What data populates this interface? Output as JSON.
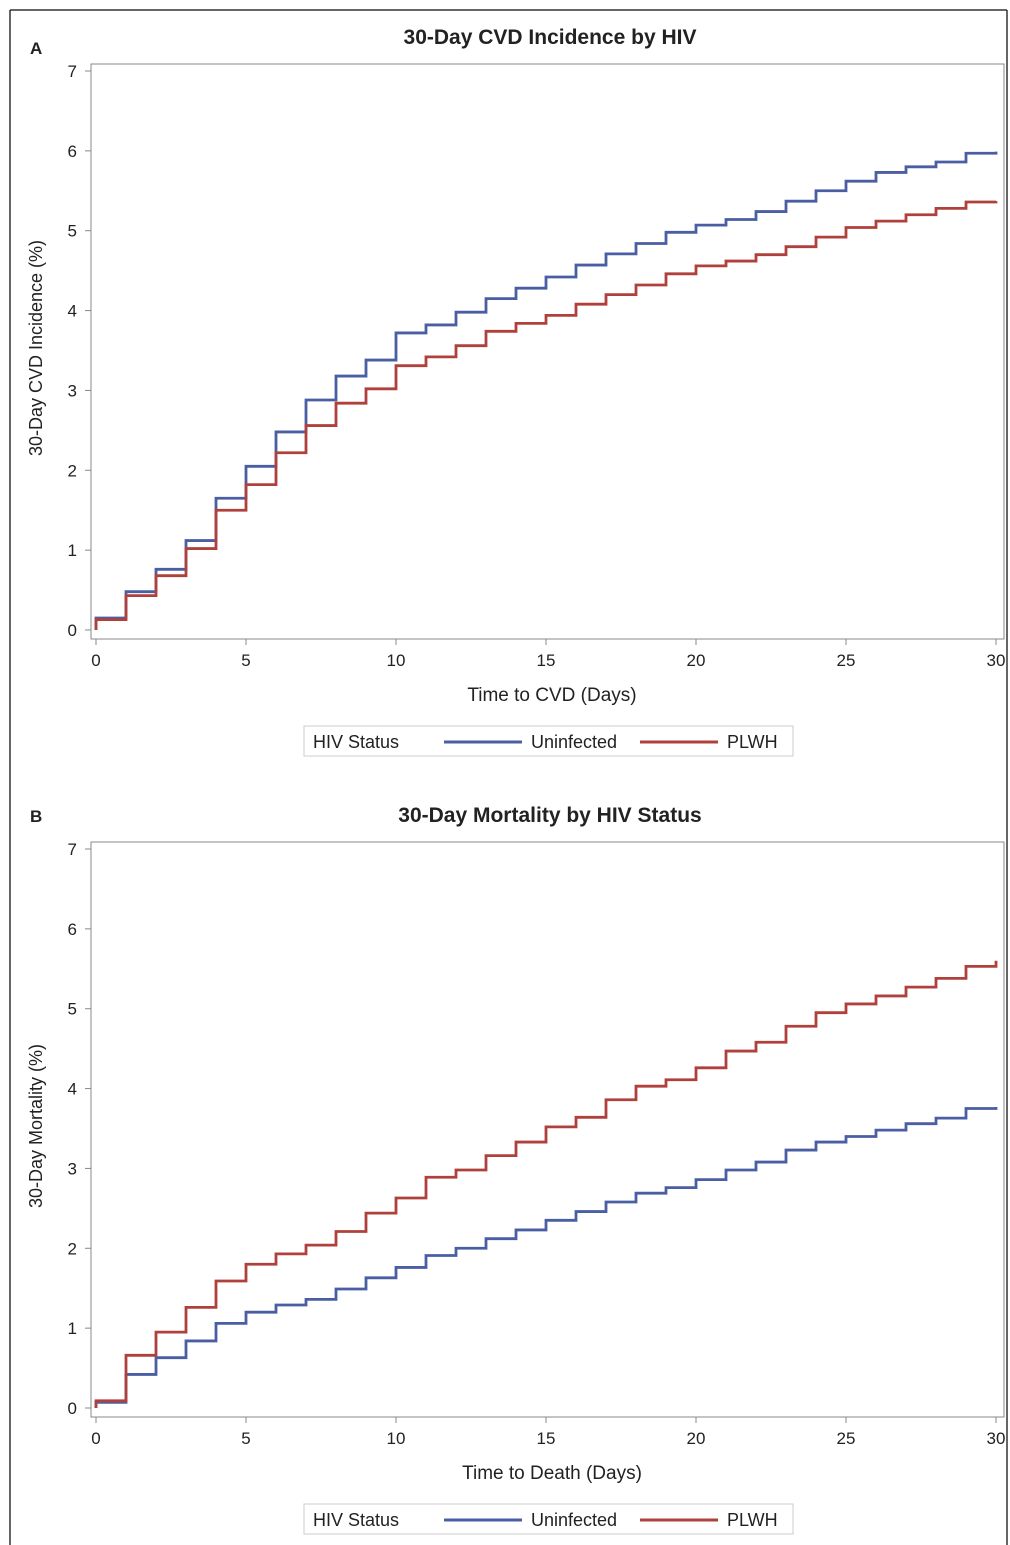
{
  "colors": {
    "uninfected": "#4a5fa3",
    "plwh": "#b0403c",
    "axis": "#888888",
    "text": "#222222",
    "legend_border": "#cccccc"
  },
  "chart_data": [
    {
      "type": "line",
      "panel_label": "A",
      "title": "30-Day CVD Incidence by HIV",
      "xlabel": "Time to CVD (Days)",
      "ylabel": "30-Day CVD Incidence (%)",
      "xlim": [
        0,
        30
      ],
      "ylim": [
        0,
        7
      ],
      "x_ticks": [
        0,
        5,
        10,
        15,
        20,
        25,
        30
      ],
      "y_ticks": [
        0,
        1,
        2,
        3,
        4,
        5,
        6,
        7
      ],
      "step": true,
      "grid": false,
      "legend": {
        "title": "HIV Status",
        "placement": "bottom-center"
      },
      "x": [
        0,
        1,
        2,
        3,
        4,
        5,
        6,
        7,
        8,
        9,
        10,
        11,
        12,
        13,
        14,
        15,
        16,
        17,
        18,
        19,
        20,
        21,
        22,
        23,
        24,
        25,
        26,
        27,
        28,
        29,
        30
      ],
      "series": [
        {
          "name": "Uninfected",
          "color": "uninfected",
          "values": [
            0.15,
            0.48,
            0.76,
            1.12,
            1.65,
            2.05,
            2.48,
            2.88,
            3.18,
            3.38,
            3.72,
            3.82,
            3.98,
            4.15,
            4.28,
            4.42,
            4.57,
            4.71,
            4.84,
            4.98,
            5.07,
            5.14,
            5.24,
            5.37,
            5.5,
            5.62,
            5.73,
            5.8,
            5.86,
            5.97,
            5.99
          ]
        },
        {
          "name": "PLWH",
          "color": "plwh",
          "values": [
            0.13,
            0.43,
            0.68,
            1.02,
            1.5,
            1.82,
            2.22,
            2.56,
            2.84,
            3.02,
            3.31,
            3.42,
            3.56,
            3.74,
            3.84,
            3.94,
            4.08,
            4.2,
            4.32,
            4.46,
            4.56,
            4.62,
            4.7,
            4.8,
            4.92,
            5.04,
            5.12,
            5.2,
            5.28,
            5.36,
            5.37
          ]
        }
      ]
    },
    {
      "type": "line",
      "panel_label": "B",
      "title": "30-Day Mortality by HIV Status",
      "xlabel": "Time to Death (Days)",
      "ylabel": "30-Day Mortality (%)",
      "xlim": [
        0,
        30
      ],
      "ylim": [
        0,
        7
      ],
      "x_ticks": [
        0,
        5,
        10,
        15,
        20,
        25,
        30
      ],
      "y_ticks": [
        0,
        1,
        2,
        3,
        4,
        5,
        6,
        7
      ],
      "step": true,
      "grid": false,
      "legend": {
        "title": "HIV Status",
        "placement": "bottom-center"
      },
      "x": [
        0,
        1,
        2,
        3,
        4,
        5,
        6,
        7,
        8,
        9,
        10,
        11,
        12,
        13,
        14,
        15,
        16,
        17,
        18,
        19,
        20,
        21,
        22,
        23,
        24,
        25,
        26,
        27,
        28,
        29,
        30
      ],
      "series": [
        {
          "name": "Uninfected",
          "color": "uninfected",
          "values": [
            0.07,
            0.42,
            0.63,
            0.84,
            1.06,
            1.2,
            1.29,
            1.36,
            1.49,
            1.63,
            1.76,
            1.91,
            2.0,
            2.12,
            2.23,
            2.35,
            2.46,
            2.58,
            2.69,
            2.76,
            2.86,
            2.98,
            3.08,
            3.23,
            3.33,
            3.4,
            3.48,
            3.56,
            3.63,
            3.75,
            3.77
          ]
        },
        {
          "name": "PLWH",
          "color": "plwh",
          "values": [
            0.09,
            0.66,
            0.95,
            1.26,
            1.59,
            1.8,
            1.93,
            2.04,
            2.21,
            2.44,
            2.63,
            2.89,
            2.98,
            3.16,
            3.33,
            3.52,
            3.64,
            3.86,
            4.03,
            4.11,
            4.26,
            4.47,
            4.58,
            4.78,
            4.95,
            5.06,
            5.16,
            5.27,
            5.38,
            5.53,
            5.6
          ]
        }
      ]
    }
  ]
}
